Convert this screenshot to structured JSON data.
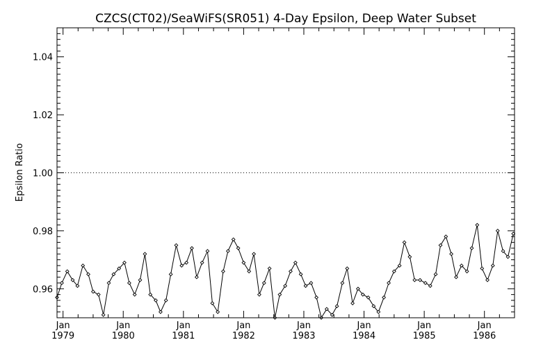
{
  "chart_data": {
    "type": "line",
    "title": "CZCS(CT02)/SeaWiFS(SR051) 4-Day Epsilon, Deep Water Subset",
    "xlabel": "",
    "ylabel": "Epsilon Ratio",
    "ylim": [
      0.95,
      1.05
    ],
    "y_ticks": [
      "0.96",
      "0.98",
      "1.00",
      "1.02",
      "1.04"
    ],
    "x_ticks": [
      {
        "month": "Jan",
        "year": "1979"
      },
      {
        "month": "Jan",
        "year": "1980"
      },
      {
        "month": "Jan",
        "year": "1981"
      },
      {
        "month": "Jan",
        "year": "1982"
      },
      {
        "month": "Jan",
        "year": "1983"
      },
      {
        "month": "Jan",
        "year": "1984"
      },
      {
        "month": "Jan",
        "year": "1985"
      },
      {
        "month": "Jan",
        "year": "1986"
      }
    ],
    "xlim": [
      1978.9,
      1986.5
    ],
    "reference_line": {
      "y": 1.0,
      "style": "dotted"
    },
    "marker": "diamond",
    "series": [
      {
        "x": [
          1978.9,
          1978.98,
          1979.07,
          1979.16,
          1979.24,
          1979.33,
          1979.42,
          1979.5,
          1979.59,
          1979.67,
          1979.76,
          1979.84,
          1979.93,
          1980.02,
          1980.1,
          1980.19,
          1980.28,
          1980.36,
          1980.45,
          1980.54,
          1980.62,
          1980.71,
          1980.79,
          1980.88,
          1980.97,
          1981.05,
          1981.14,
          1981.22,
          1981.31,
          1981.4,
          1981.48,
          1981.57,
          1981.66,
          1981.74,
          1981.83,
          1981.91,
          1982.0,
          1982.09,
          1982.17,
          1982.26,
          1982.34,
          1982.43,
          1982.52,
          1982.6,
          1982.69,
          1982.78,
          1982.86,
          1982.95,
          1983.03,
          1983.12,
          1983.21,
          1983.29,
          1983.38,
          1983.47,
          1983.55,
          1983.64,
          1983.72,
          1983.81,
          1983.9,
          1983.98,
          1984.07,
          1984.16,
          1984.24,
          1984.33,
          1984.41,
          1984.5,
          1984.59,
          1984.67,
          1984.76,
          1984.84,
          1984.93,
          1985.02,
          1985.1,
          1985.19,
          1985.27,
          1985.36,
          1985.45,
          1985.53,
          1985.62,
          1985.71,
          1985.79,
          1985.88,
          1985.96,
          1986.05,
          1986.14,
          1986.22,
          1986.31,
          1986.39,
          1986.48
        ],
        "values": [
          0.957,
          0.962,
          0.966,
          0.963,
          0.961,
          0.968,
          0.965,
          0.959,
          0.958,
          0.951,
          0.962,
          0.965,
          0.967,
          0.969,
          0.962,
          0.958,
          0.963,
          0.972,
          0.958,
          0.956,
          0.952,
          0.956,
          0.965,
          0.975,
          0.968,
          0.969,
          0.974,
          0.964,
          0.969,
          0.973,
          0.955,
          0.952,
          0.966,
          0.973,
          0.977,
          0.974,
          0.969,
          0.966,
          0.972,
          0.958,
          0.962,
          0.967,
          0.95,
          0.958,
          0.961,
          0.966,
          0.969,
          0.965,
          0.961,
          0.962,
          0.957,
          0.95,
          0.953,
          0.951,
          0.954,
          0.962,
          0.967,
          0.955,
          0.96,
          0.958,
          0.957,
          0.954,
          0.952,
          0.957,
          0.962,
          0.966,
          0.968,
          0.976,
          0.971,
          0.963,
          0.963,
          0.962,
          0.961,
          0.965,
          0.975,
          0.978,
          0.972,
          0.964,
          0.968,
          0.966,
          0.974,
          0.982,
          0.967,
          0.963,
          0.968,
          0.98,
          0.973,
          0.971,
          0.979
        ]
      }
    ]
  }
}
